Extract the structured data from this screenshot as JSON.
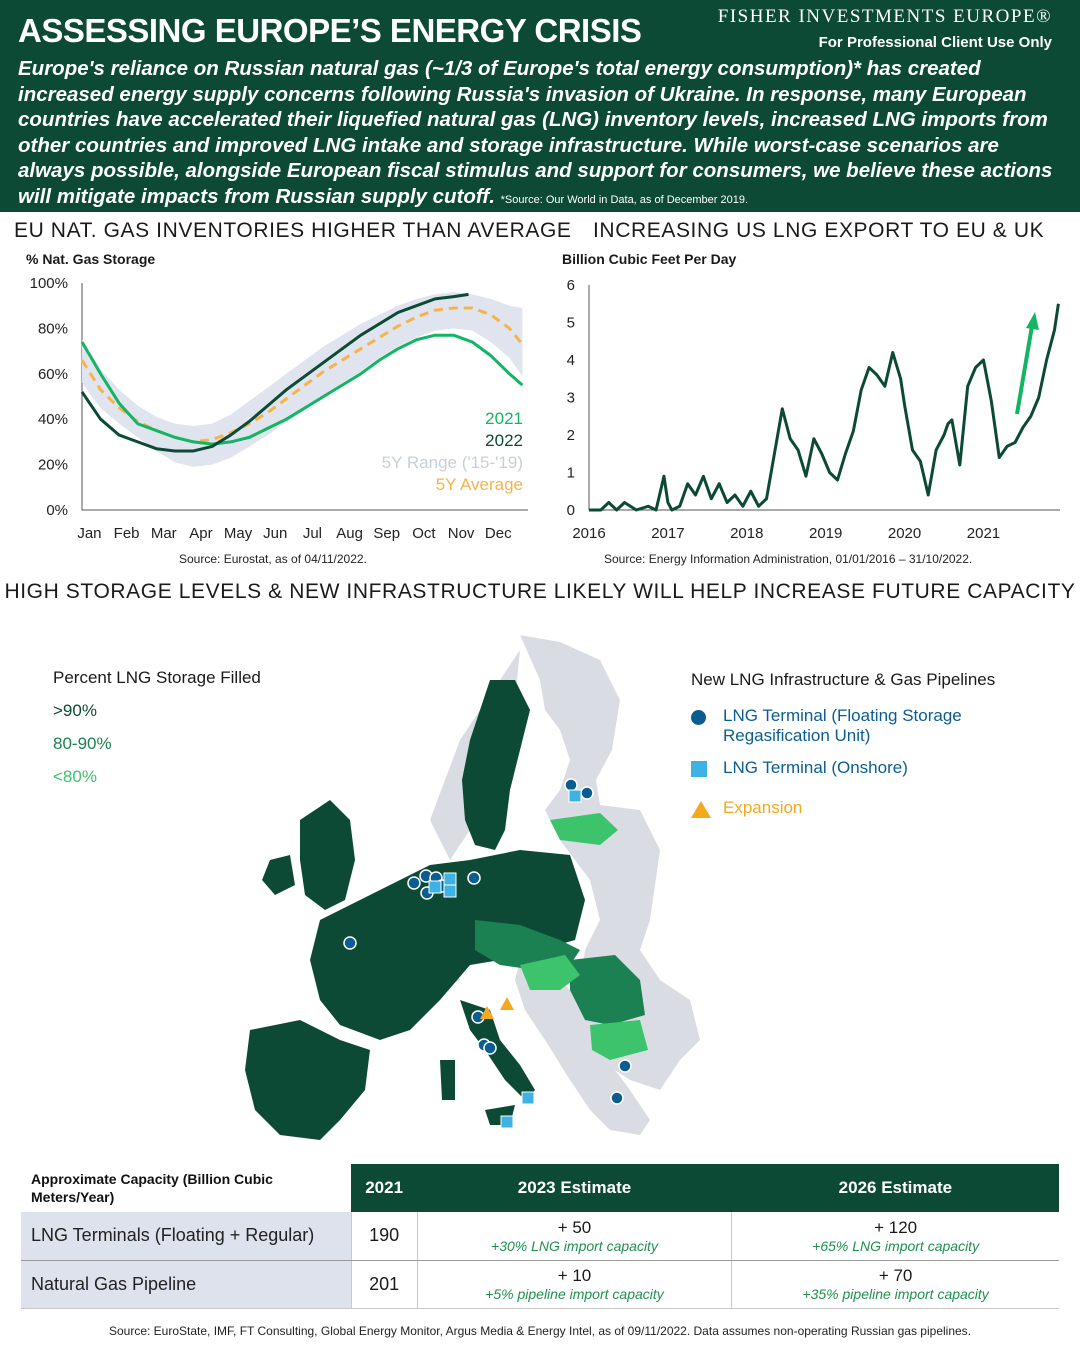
{
  "header": {
    "title": "ASSESSING EUROPE’S ENERGY CRISIS",
    "brand": "FISHER INVESTMENTS EUROPE®",
    "audience": "For Professional Client Use Only",
    "intro": "Europe's reliance on Russian natural gas (~1/3 of Europe's total energy consumption)* has created increased energy supply concerns following Russia's invasion of Ukraine. In response, many European countries have accelerated their liquefied natural gas (LNG) inventory levels, increased LNG imports from other countries and improved LNG intake and storage infrastructure. While worst-case scenarios are always possible, alongside European fiscal stimulus and support for consumers, we believe these actions will mitigate impacts from Russian supply cutoff.",
    "intro_source": "*Source: Our World in Data, as of December 2019."
  },
  "colors": {
    "brand_green": "#0c4a35",
    "line_2021": "#13b463",
    "line_2022": "#0c4a35",
    "range_band": "#dfe4ee",
    "average": "#f7b34a",
    "lng_floating": "#0b5d91",
    "lng_onshore": "#3fb2e4",
    "expansion": "#f4a81c",
    "storage_gt90": "#0c4a35",
    "storage_80_90": "#1c8152",
    "storage_lt80": "#3cc36b"
  },
  "chart_data": [
    {
      "type": "line",
      "title": "EU NAT. GAS INVENTORIES HIGHER THAN AVERAGE",
      "ylabel": "% Nat. Gas Storage",
      "ylim": [
        0,
        100
      ],
      "yticks": [
        "0%",
        "20%",
        "40%",
        "60%",
        "80%",
        "100%"
      ],
      "xticks": [
        "Jan",
        "Feb",
        "Mar",
        "Apr",
        "May",
        "Jun",
        "Jul",
        "Aug",
        "Sep",
        "Oct",
        "Nov",
        "Dec"
      ],
      "x_unit": "month (1 = Jan 1)",
      "series": [
        {
          "name": "2021",
          "x": [
            1,
            1.5,
            2,
            2.5,
            3,
            3.5,
            4,
            4.5,
            5,
            5.5,
            6,
            6.5,
            7,
            7.5,
            8,
            8.5,
            9,
            9.5,
            10,
            10.5,
            11,
            11.5,
            12,
            12.5,
            12.85
          ],
          "values": [
            74,
            60,
            47,
            38,
            35,
            32,
            30,
            29,
            30,
            32,
            36,
            40,
            45,
            50,
            55,
            60,
            66,
            71,
            75,
            77,
            77,
            74,
            68,
            60,
            55
          ]
        },
        {
          "name": "2022",
          "x": [
            1,
            1.5,
            2,
            2.5,
            3,
            3.5,
            4,
            4.5,
            5,
            5.5,
            6,
            6.5,
            7,
            7.5,
            8,
            8.5,
            9,
            9.5,
            10,
            10.5,
            11,
            11.4
          ],
          "values": [
            52,
            40,
            33,
            30,
            27,
            26,
            26,
            28,
            33,
            39,
            46,
            53,
            59,
            65,
            71,
            77,
            82,
            87,
            90,
            93,
            94,
            95
          ]
        },
        {
          "name": "5Y Average",
          "x": [
            1,
            1.5,
            2,
            2.5,
            3,
            3.5,
            4,
            4.5,
            5,
            5.5,
            6,
            6.5,
            7,
            7.5,
            8,
            8.5,
            9,
            9.5,
            10,
            10.5,
            11,
            11.5,
            12,
            12.5,
            12.85
          ],
          "values": [
            66,
            53,
            45,
            39,
            35,
            32,
            30,
            31,
            34,
            38,
            43,
            49,
            55,
            61,
            66,
            71,
            76,
            81,
            85,
            88,
            89,
            89,
            86,
            80,
            73
          ]
        },
        {
          "name": "5Y Range ('15-'19)",
          "x": [
            1,
            1.5,
            2,
            2.5,
            3,
            3.5,
            4,
            4.5,
            5,
            5.5,
            6,
            6.5,
            7,
            7.5,
            8,
            8.5,
            9,
            9.5,
            10,
            10.5,
            11,
            11.5,
            12,
            12.5,
            12.85
          ],
          "upper": [
            75,
            62,
            53,
            46,
            41,
            38,
            37,
            38,
            42,
            48,
            54,
            60,
            66,
            72,
            77,
            82,
            86,
            90,
            93,
            95,
            96,
            95,
            93,
            90,
            89
          ],
          "lower": [
            56,
            45,
            38,
            32,
            26,
            21,
            19,
            20,
            23,
            28,
            33,
            39,
            44,
            50,
            56,
            61,
            67,
            72,
            76,
            79,
            80,
            79,
            74,
            67,
            59
          ]
        }
      ],
      "legend_placement": "bottom-right",
      "source": "Source: Eurostat, as of 04/11/2022."
    },
    {
      "type": "line",
      "title": "INCREASING US LNG EXPORT TO EU & UK",
      "ylabel": "Billion Cubic Feet Per Day",
      "ylim": [
        0,
        6
      ],
      "yticks": [
        "0",
        "1",
        "2",
        "3",
        "4",
        "5",
        "6"
      ],
      "xticks": [
        "2016",
        "2017",
        "2018",
        "2019",
        "2020",
        "2021"
      ],
      "series": [
        {
          "name": "",
          "x": [
            2016.0,
            2016.15,
            2016.25,
            2016.35,
            2016.45,
            2016.6,
            2016.75,
            2016.85,
            2016.95,
            2017.0,
            2017.05,
            2017.15,
            2017.25,
            2017.35,
            2017.45,
            2017.55,
            2017.65,
            2017.75,
            2017.85,
            2017.95,
            2018.05,
            2018.15,
            2018.25,
            2018.35,
            2018.45,
            2018.55,
            2018.65,
            2018.75,
            2018.85,
            2018.95,
            2019.05,
            2019.15,
            2019.25,
            2019.35,
            2019.45,
            2019.55,
            2019.65,
            2019.75,
            2019.85,
            2019.95,
            2020.0,
            2020.05,
            2020.1,
            2020.2,
            2020.3,
            2020.4,
            2020.5,
            2020.55,
            2020.6,
            2020.7,
            2020.8,
            2020.9,
            2021.0,
            2021.1,
            2021.2,
            2021.3,
            2021.4,
            2021.5,
            2021.6,
            2021.7,
            2021.8,
            2021.9,
            2021.95
          ],
          "values": [
            0.0,
            0.0,
            0.2,
            0.0,
            0.2,
            0.0,
            0.1,
            0.0,
            0.9,
            0.2,
            0.0,
            0.1,
            0.7,
            0.4,
            0.9,
            0.3,
            0.7,
            0.2,
            0.4,
            0.1,
            0.5,
            0.1,
            0.3,
            1.5,
            2.7,
            1.9,
            1.6,
            0.9,
            1.9,
            1.5,
            1.0,
            0.8,
            1.5,
            2.1,
            3.2,
            3.8,
            3.6,
            3.3,
            4.2,
            3.5,
            2.8,
            2.2,
            1.6,
            1.3,
            0.4,
            1.6,
            2.0,
            2.3,
            2.4,
            1.2,
            3.3,
            3.8,
            4.0,
            2.9,
            1.4,
            1.7,
            1.8,
            2.2,
            2.5,
            3.0,
            4.0,
            4.8,
            5.5
          ]
        }
      ],
      "source": "Source: Energy Information Administration, 01/01/2016 – 31/10/2022."
    }
  ],
  "map": {
    "title": "HIGH STORAGE LEVELS & NEW INFRASTRUCTURE LIKELY WILL HELP INCREASE FUTURE CAPACITY",
    "storage_legend": {
      "title": "Percent LNG Storage Filled",
      "items": [
        ">90%",
        "80-90%",
        "<80%"
      ]
    },
    "infra_legend": {
      "title": "New LNG Infrastructure & Gas Pipelines",
      "floating": "LNG Terminal (Floating Storage Regasification Unit)",
      "onshore": "LNG Terminal (Onshore)",
      "expansion": "Expansion"
    }
  },
  "table": {
    "header_label": "Approximate Capacity (Billion Cubic Meters/Year)",
    "columns": [
      "2021",
      "2023 Estimate",
      "2026 Estimate"
    ],
    "rows": [
      {
        "label": "LNG Terminals  (Floating + Regular)",
        "v2021": "190",
        "e2023": "+ 50",
        "e2023_note": "+30% LNG import capacity",
        "e2026": "+ 120",
        "e2026_note": "+65% LNG import capacity"
      },
      {
        "label": "Natural Gas Pipeline",
        "v2021": "201",
        "e2023": "+ 10",
        "e2023_note": "+5% pipeline import capacity",
        "e2026": "+ 70",
        "e2026_note": "+35% pipeline import capacity"
      }
    ]
  },
  "footer": "Source: EuroState, IMF, FT Consulting, Global Energy Monitor, Argus Media & Energy Intel, as of 09/11/2022. Data assumes non-operating Russian gas pipelines."
}
